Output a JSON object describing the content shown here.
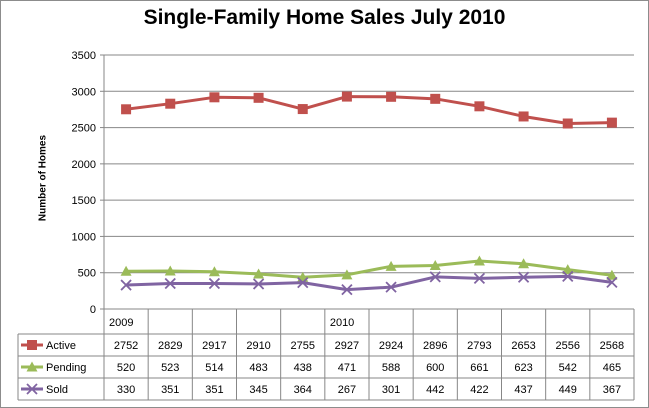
{
  "chart_data": {
    "type": "line",
    "title": "Single-Family Home Sales July 2010",
    "xlabel": "",
    "ylabel": "Number of Homes",
    "ylim": [
      0,
      3500
    ],
    "yticks": [
      "0",
      "500",
      "1000",
      "1500",
      "2000",
      "2500",
      "3000",
      "3500"
    ],
    "grid": true,
    "legend": "table-left",
    "categories": [
      "2009",
      "",
      "",
      "",
      "",
      "2010",
      "",
      "",
      "",
      "",
      "",
      ""
    ],
    "series": [
      {
        "name": "Active",
        "color": "#c0504d",
        "marker": "square",
        "values": [
          2752,
          2829,
          2917,
          2910,
          2755,
          2927,
          2924,
          2896,
          2793,
          2653,
          2556,
          2568
        ]
      },
      {
        "name": "Pending",
        "color": "#9bbb59",
        "marker": "triangle",
        "values": [
          520,
          523,
          514,
          483,
          438,
          471,
          588,
          600,
          661,
          623,
          542,
          465
        ]
      },
      {
        "name": "Sold",
        "color": "#8064a2",
        "marker": "x",
        "values": [
          330,
          351,
          351,
          345,
          364,
          267,
          301,
          442,
          422,
          437,
          449,
          367
        ]
      }
    ]
  }
}
